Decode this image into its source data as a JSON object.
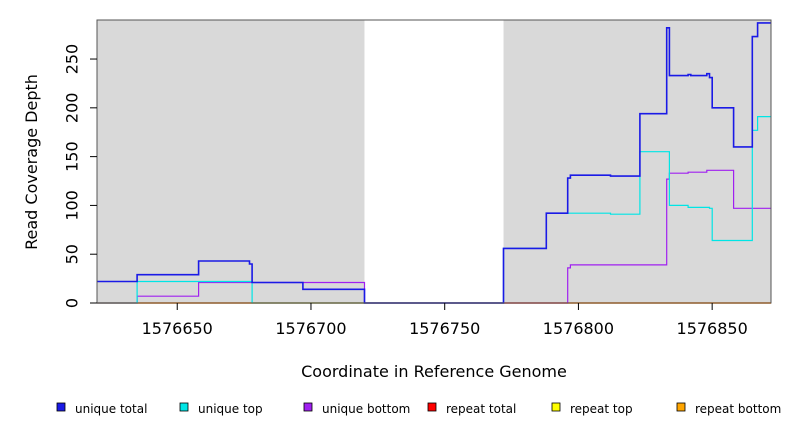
{
  "chart_data": {
    "type": "line",
    "title": "",
    "xlabel": "Coordinate in Reference Genome",
    "ylabel": "Read Coverage Depth",
    "xlim": [
      1576620,
      1576872
    ],
    "ylim": [
      0,
      290
    ],
    "x_ticks": [
      1576650,
      1576700,
      1576750,
      1576800,
      1576850
    ],
    "y_ticks": [
      0,
      50,
      100,
      150,
      200,
      250
    ],
    "shaded_regions": [
      [
        1576620,
        1576720
      ],
      [
        1576772,
        1576872
      ]
    ],
    "shading_color": "#d9d9d9",
    "legend_position": "bottom",
    "series": [
      {
        "name": "unique total",
        "color": "#1a1ae6",
        "x": [
          1576620,
          1576635,
          1576635,
          1576658,
          1576658,
          1576677,
          1576677,
          1576678,
          1576678,
          1576697,
          1576697,
          1576720,
          1576720,
          1576772,
          1576772,
          1576788,
          1576788,
          1576796,
          1576796,
          1576797,
          1576797,
          1576812,
          1576812,
          1576823,
          1576823,
          1576833,
          1576833,
          1576834,
          1576834,
          1576841,
          1576841,
          1576842,
          1576842,
          1576848,
          1576848,
          1576849,
          1576849,
          1576850,
          1576850,
          1576858,
          1576858,
          1576865,
          1576865,
          1576867,
          1576867,
          1576872
        ],
        "y": [
          22,
          22,
          29,
          29,
          43,
          43,
          40,
          40,
          21,
          21,
          14,
          14,
          0,
          0,
          56,
          56,
          92,
          92,
          128,
          128,
          131,
          131,
          130,
          130,
          194,
          194,
          282,
          282,
          233,
          233,
          234,
          234,
          233,
          233,
          235,
          235,
          231,
          231,
          200,
          200,
          160,
          160,
          273,
          273,
          287,
          287
        ]
      },
      {
        "name": "unique top",
        "color": "#00e5e5",
        "x": [
          1576620,
          1576635,
          1576635,
          1576658,
          1576658,
          1576678,
          1576678,
          1576720,
          1576720,
          1576772,
          1576772,
          1576788,
          1576788,
          1576812,
          1576812,
          1576823,
          1576823,
          1576833,
          1576833,
          1576834,
          1576834,
          1576841,
          1576841,
          1576849,
          1576849,
          1576850,
          1576850,
          1576865,
          1576865,
          1576867,
          1576867,
          1576872
        ],
        "y": [
          0,
          0,
          22,
          22,
          22,
          22,
          0,
          0,
          0,
          0,
          56,
          56,
          92,
          92,
          91,
          91,
          155,
          155,
          155,
          155,
          100,
          100,
          98,
          98,
          97,
          97,
          64,
          64,
          177,
          177,
          191,
          191
        ]
      },
      {
        "name": "unique bottom",
        "color": "#a020f0",
        "x": [
          1576620,
          1576635,
          1576635,
          1576658,
          1576658,
          1576678,
          1576678,
          1576720,
          1576720,
          1576796,
          1576796,
          1576797,
          1576797,
          1576833,
          1576833,
          1576834,
          1576834,
          1576841,
          1576841,
          1576848,
          1576848,
          1576858,
          1576858,
          1576872
        ],
        "y": [
          0,
          0,
          7,
          7,
          21,
          21,
          21,
          21,
          0,
          0,
          36,
          36,
          39,
          39,
          127,
          127,
          133,
          133,
          134,
          134,
          136,
          136,
          97,
          97
        ]
      },
      {
        "name": "repeat total",
        "color": "#ff0000",
        "x": [
          1576620,
          1576872
        ],
        "y": [
          0,
          0
        ]
      },
      {
        "name": "repeat top",
        "color": "#ffff00",
        "x": [
          1576620,
          1576872
        ],
        "y": [
          0,
          0
        ]
      },
      {
        "name": "repeat bottom",
        "color": "#ffa500",
        "x": [
          1576620,
          1576872
        ],
        "y": [
          0,
          0
        ]
      }
    ]
  }
}
